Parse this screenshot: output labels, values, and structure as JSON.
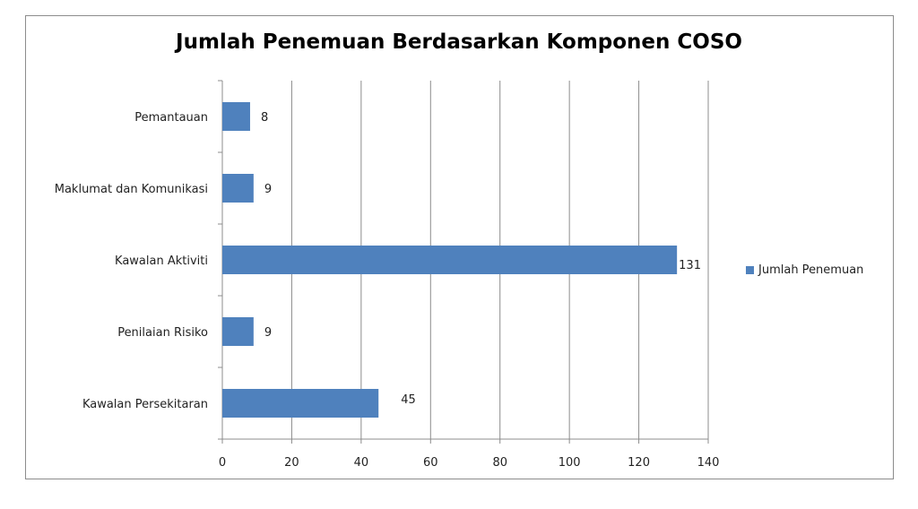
{
  "chart_data": {
    "type": "bar",
    "orientation": "horizontal",
    "title": "Jumlah Penemuan Berdasarkan Komponen COSO",
    "categories": [
      "Kawalan Persekitaran",
      "Penilaian Risiko",
      "Kawalan Aktiviti",
      "Maklumat dan Komunikasi",
      "Pemantauan"
    ],
    "series": [
      {
        "name": "Jumlah Penemuan",
        "values": [
          45,
          9,
          131,
          9,
          8
        ],
        "color": "#4f81bd"
      }
    ],
    "xlim": [
      0,
      140
    ],
    "xticks": [
      0,
      20,
      40,
      60,
      80,
      100,
      120,
      140
    ],
    "grid": true,
    "legend": "right",
    "data_labels": true
  }
}
